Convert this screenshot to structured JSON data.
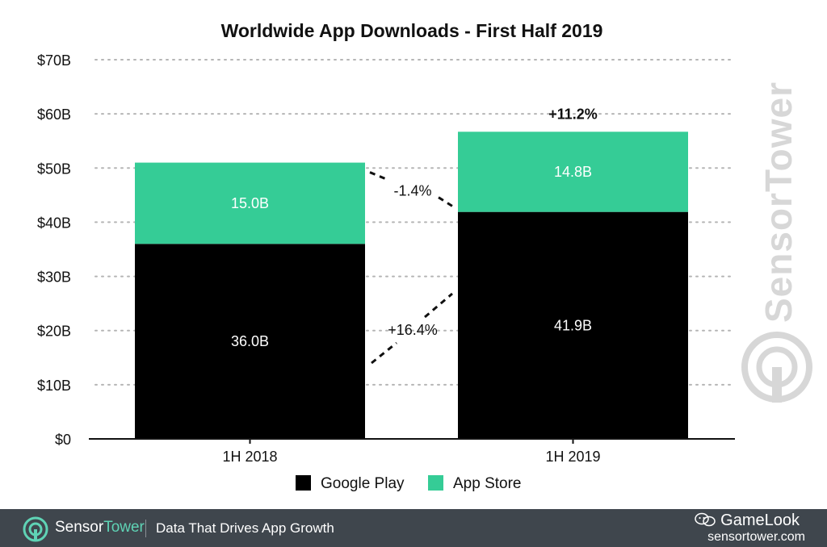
{
  "chart_data": {
    "type": "bar",
    "stacked": true,
    "title": "Worldwide App Downloads - First Half 2019",
    "categories": [
      "1H 2018",
      "1H 2019"
    ],
    "series": [
      {
        "name": "Google Play",
        "values": [
          36.0,
          41.9
        ],
        "labels": [
          "36.0B",
          "41.9B"
        ],
        "color": "#000000"
      },
      {
        "name": "App Store",
        "values": [
          15.0,
          14.8
        ],
        "labels": [
          "15.0B",
          "14.8B"
        ],
        "color": "#35cc96"
      }
    ],
    "ylim": [
      0,
      70
    ],
    "yticks": [
      "$0",
      "$10B",
      "$20B",
      "$30B",
      "$40B",
      "$50B",
      "$60B",
      "$70B"
    ],
    "grid": true,
    "legend": "bottom-center",
    "annotations": {
      "total_change": "+11.2%",
      "app_store_change": "-1.4%",
      "google_play_change": "+16.4%"
    }
  },
  "watermark": {
    "text": "SensorTower"
  },
  "footer": {
    "brand_sensor": "Sensor",
    "brand_tower": "Tower",
    "tagline": "Data That Drives App Growth",
    "gamelook": "GameLook",
    "url": "sensortower.com"
  }
}
